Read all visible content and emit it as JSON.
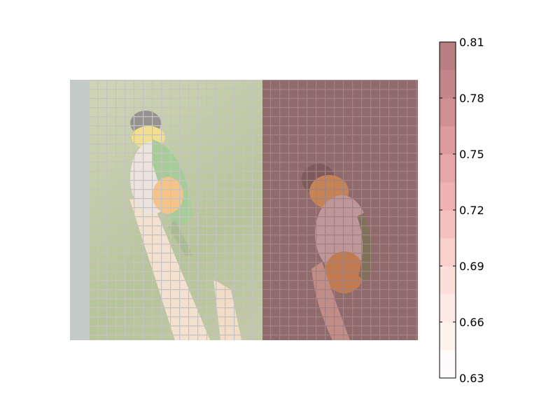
{
  "chart_data": {
    "type": "heatmap",
    "title": "",
    "xlabel": "",
    "ylabel": "",
    "description_of_background": "",
    "colorbar": {
      "vmin": 0.63,
      "vmax": 0.81,
      "ticks": [
        0.63,
        0.66,
        0.69,
        0.72,
        0.75,
        0.78,
        0.81
      ],
      "tick_labels": [
        "0.63",
        "0.66",
        "0.69",
        "0.72",
        "0.75",
        "0.78",
        "0.81"
      ],
      "levels": 12,
      "colormap": [
        "#ffffff",
        "#fdeeea",
        "#fbd9d4",
        "#f3b9b5",
        "#e3a0a3",
        "#c98a8e",
        "#b47a80"
      ]
    },
    "overlay": {
      "grid_columns": 2,
      "grid_rows": 1,
      "cell_values": [
        [
          0.64,
          0.81
        ]
      ]
    }
  }
}
